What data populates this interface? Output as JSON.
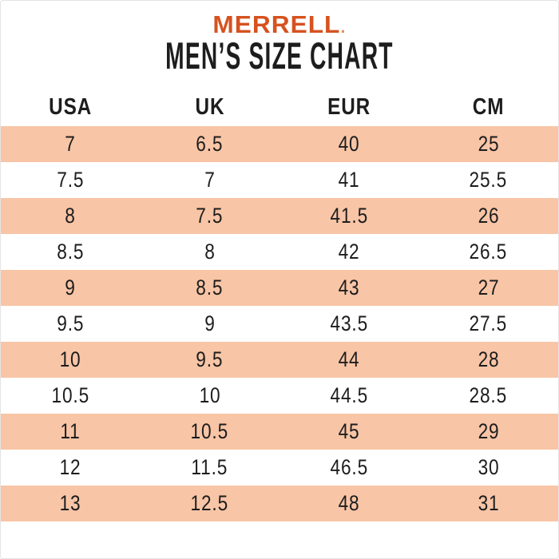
{
  "brand": {
    "name": "MERRELL",
    "mark": "."
  },
  "title": "MEN’S SIZE CHART",
  "colors": {
    "brand_orange": "#d6521f",
    "stripe_peach": "#f8c5a6",
    "text_black": "#1d1d1d"
  },
  "chart_data": {
    "type": "table",
    "title": "MEN’S SIZE CHART",
    "columns": [
      "USA",
      "UK",
      "EUR",
      "CM"
    ],
    "rows": [
      [
        "7",
        "6.5",
        "40",
        "25"
      ],
      [
        "7.5",
        "7",
        "41",
        "25.5"
      ],
      [
        "8",
        "7.5",
        "41.5",
        "26"
      ],
      [
        "8.5",
        "8",
        "42",
        "26.5"
      ],
      [
        "9",
        "8.5",
        "43",
        "27"
      ],
      [
        "9.5",
        "9",
        "43.5",
        "27.5"
      ],
      [
        "10",
        "9.5",
        "44",
        "28"
      ],
      [
        "10.5",
        "10",
        "44.5",
        "28.5"
      ],
      [
        "11",
        "10.5",
        "45",
        "29"
      ],
      [
        "12",
        "11.5",
        "46.5",
        "30"
      ],
      [
        "13",
        "12.5",
        "48",
        "31"
      ]
    ]
  }
}
